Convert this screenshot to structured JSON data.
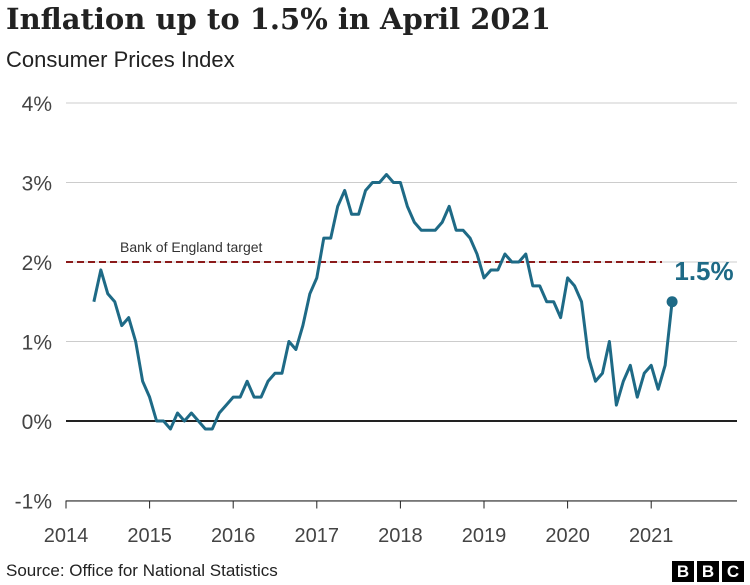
{
  "title": "Inflation up to 1.5% in April 2021",
  "subtitle": "Consumer Prices Index",
  "source": "Source: Office for National Statistics",
  "logo": "BBC",
  "chart_data": {
    "type": "line",
    "title": "Inflation up to 1.5% in April 2021",
    "subtitle": "Consumer Prices Index",
    "ylim": [
      -1,
      4
    ],
    "yticks": [
      -1,
      0,
      1,
      2,
      3,
      4
    ],
    "ytick_labels": [
      "-1%",
      "0%",
      "1%",
      "2%",
      "3%",
      "4%"
    ],
    "xticks": [
      2014,
      2015,
      2016,
      2017,
      2018,
      2019,
      2020,
      2021
    ],
    "xtick_labels": [
      "2014",
      "2015",
      "2016",
      "2017",
      "2018",
      "2019",
      "2020",
      "2021"
    ],
    "grid": true,
    "start": "2014-05",
    "x_note": "monthly, May 2014 to April 2021",
    "series": [
      {
        "values": [
          1.5,
          1.9,
          1.6,
          1.5,
          1.2,
          1.3,
          1.0,
          0.5,
          0.3,
          0.0,
          0.0,
          -0.1,
          0.1,
          0.0,
          0.1,
          0.0,
          -0.1,
          -0.1,
          0.1,
          0.2,
          0.3,
          0.3,
          0.5,
          0.3,
          0.3,
          0.5,
          0.6,
          0.6,
          1.0,
          0.9,
          1.2,
          1.6,
          1.8,
          2.3,
          2.3,
          2.7,
          2.9,
          2.6,
          2.6,
          2.9,
          3.0,
          3.0,
          3.1,
          3.0,
          3.0,
          2.7,
          2.5,
          2.4,
          2.4,
          2.4,
          2.5,
          2.7,
          2.4,
          2.4,
          2.3,
          2.1,
          1.8,
          1.9,
          1.9,
          2.1,
          2.0,
          2.0,
          2.1,
          1.7,
          1.7,
          1.5,
          1.5,
          1.3,
          1.8,
          1.7,
          1.5,
          0.8,
          0.5,
          0.6,
          1.0,
          0.2,
          0.5,
          0.7,
          0.3,
          0.6,
          0.7,
          0.4,
          0.7,
          1.5
        ]
      }
    ],
    "target": {
      "value": 2,
      "label": "Bank of England target"
    },
    "end_label": "1.5%",
    "colors": {
      "line": "#1e6a86",
      "target": "#8b1a1a",
      "grid": "#cccccc"
    }
  }
}
